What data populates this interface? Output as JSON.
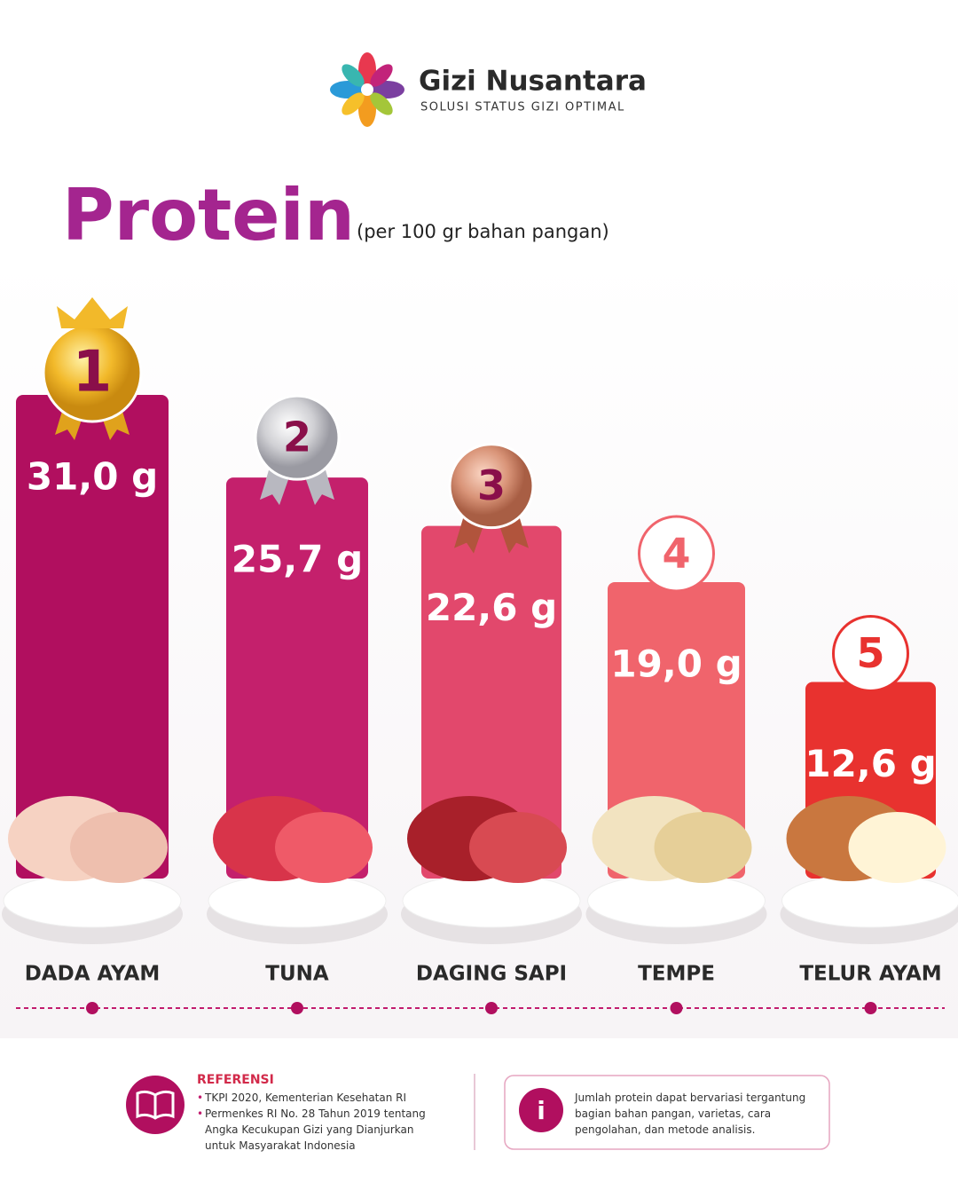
{
  "header": {
    "brand": "Gizi Nusantara",
    "tagline": "SOLUSI STATUS GIZI OPTIMAL"
  },
  "chart_data": {
    "type": "bar",
    "title": "Protein",
    "subtitle": "(per 100 gr bahan pangan)",
    "categories": [
      "DADA AYAM",
      "TUNA",
      "DAGING SAPI",
      "TEMPE",
      "TELUR AYAM"
    ],
    "values": [
      31.0,
      25.7,
      22.6,
      19.0,
      12.6
    ],
    "value_labels": [
      "31,0 g",
      "25,7 g",
      "22,6 g",
      "19,0 g",
      "12,6 g"
    ],
    "ranks": [
      1,
      2,
      3,
      4,
      5
    ],
    "colors": [
      "#b10f5f",
      "#c4206c",
      "#e2486c",
      "#f0646c",
      "#e8322f"
    ]
  },
  "footer": {
    "references_title": "REFERENSI",
    "references": [
      "TKPI 2020, Kementerian Kesehatan RI",
      "Permenkes RI No. 28 Tahun 2019 tentang Angka Kecukupan Gizi yang Dianjurkan untuk Masyarakat Indonesia"
    ],
    "note": "Jumlah protein dapat bervariasi tergantung bagian bahan pangan, varietas, cara pengolahan, dan metode analisis."
  }
}
